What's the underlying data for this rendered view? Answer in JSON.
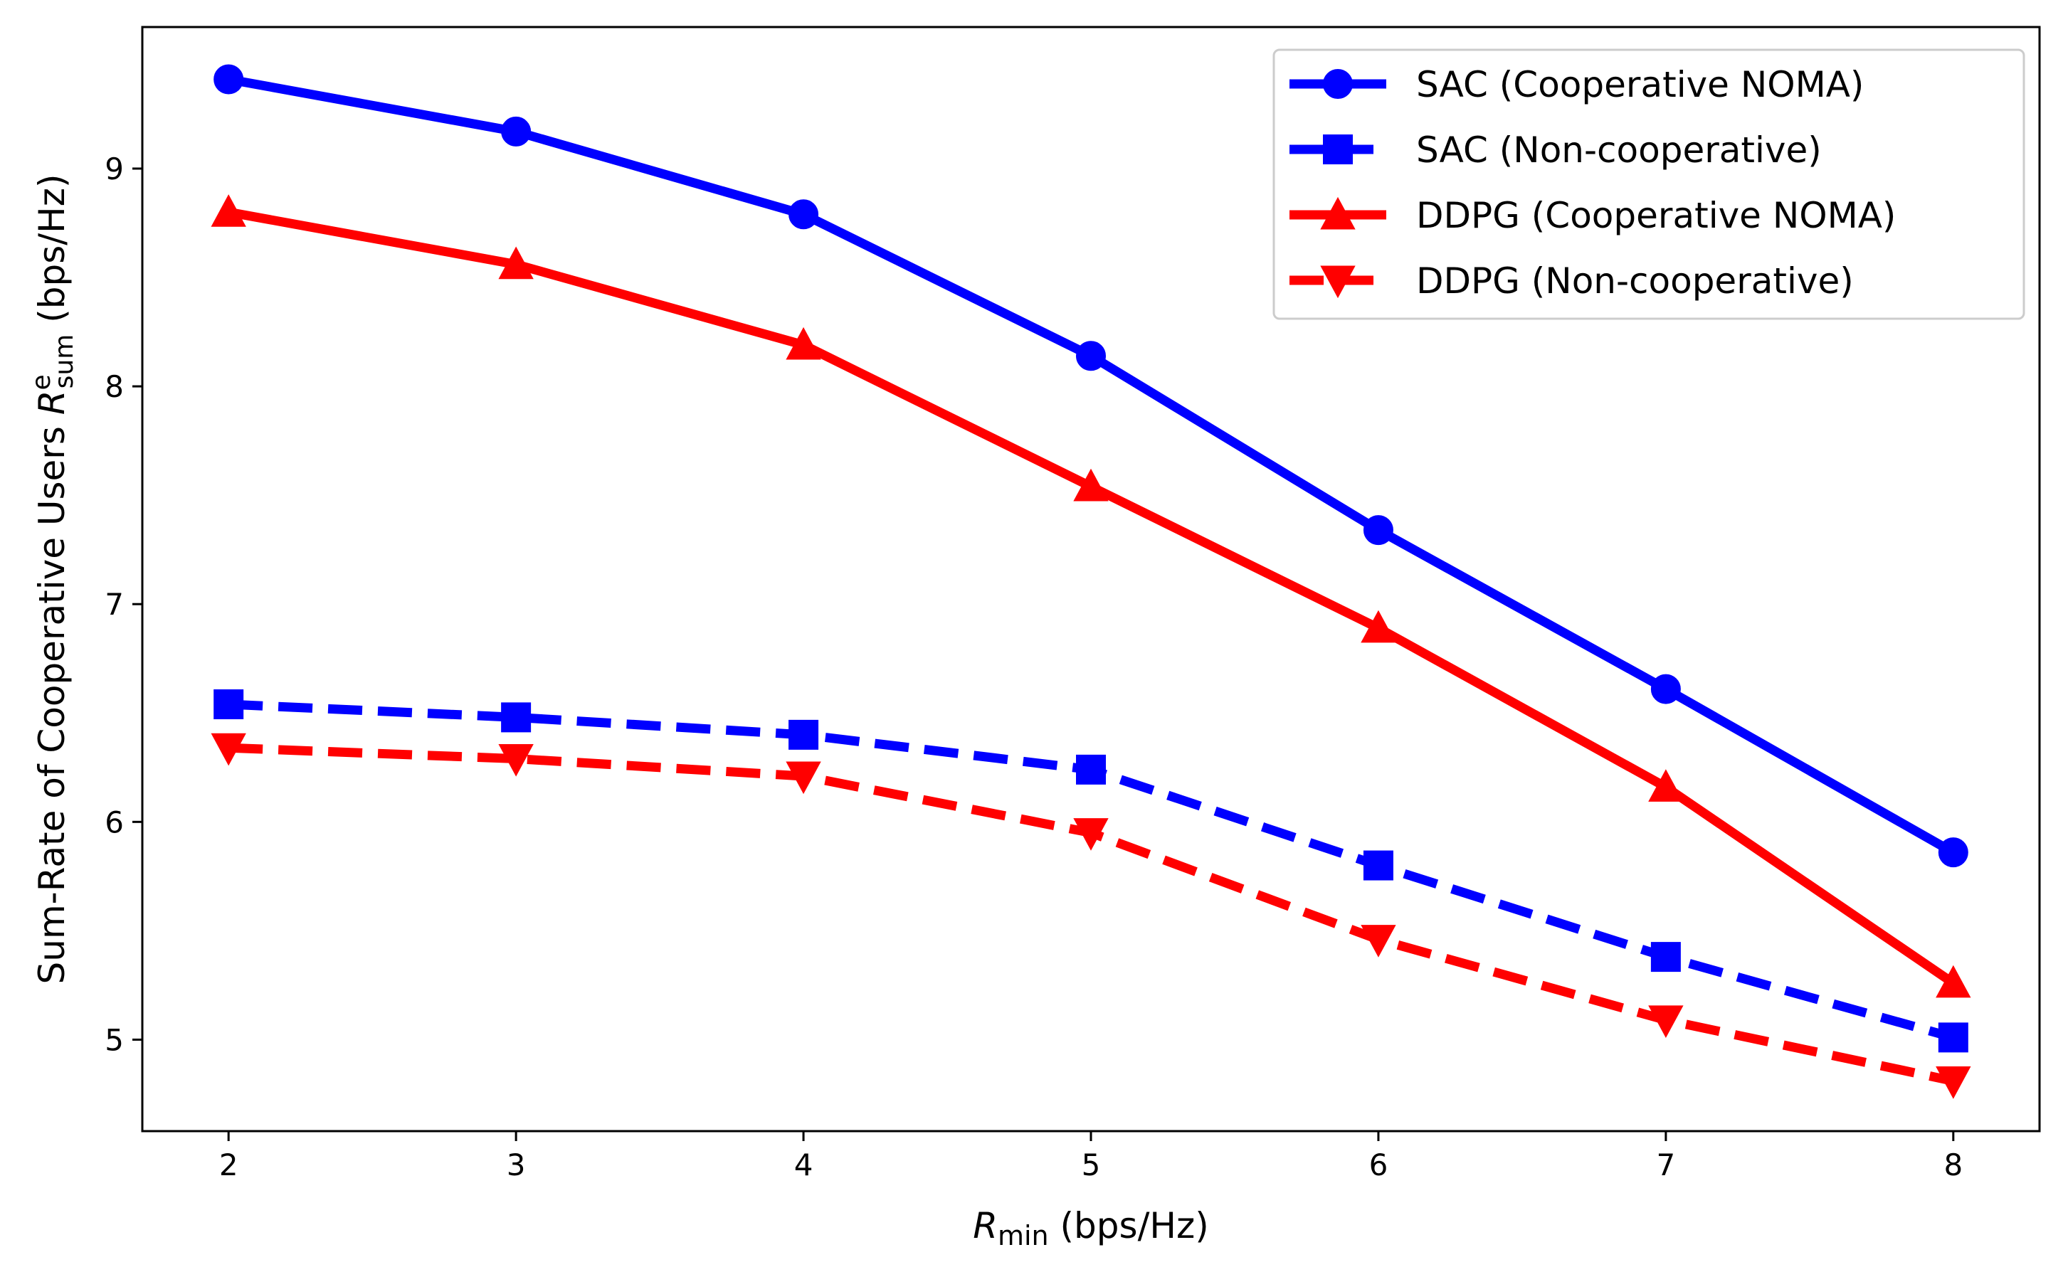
{
  "chart_data": {
    "type": "line",
    "x": [
      2,
      3,
      4,
      5,
      6,
      7,
      8
    ],
    "xlim": [
      1.7,
      8.3
    ],
    "ylim": [
      4.58,
      9.65
    ],
    "xticks": [
      2,
      3,
      4,
      5,
      6,
      7,
      8
    ],
    "yticks": [
      5,
      6,
      7,
      8,
      9
    ],
    "xlabel": {
      "var": "R",
      "sub": "min",
      "unit": " (bps/Hz)"
    },
    "ylabel": {
      "prefix": "Sum-Rate of Cooperative Users ",
      "var": "R",
      "sup": "e",
      "sub": "sum",
      "unit": "  (bps/Hz)"
    },
    "grid": false,
    "legend_position": "top-right",
    "series": [
      {
        "name": "SAC (Cooperative NOMA)",
        "color": "#0000ff",
        "dash": "solid",
        "marker": "circle",
        "values": [
          9.41,
          9.17,
          8.79,
          8.14,
          7.34,
          6.61,
          5.86
        ]
      },
      {
        "name": "SAC (Non-cooperative)",
        "color": "#0000ff",
        "dash": "dashed",
        "marker": "square",
        "values": [
          6.54,
          6.48,
          6.4,
          6.24,
          5.8,
          5.38,
          5.01
        ]
      },
      {
        "name": "DDPG (Cooperative NOMA)",
        "color": "#ff0000",
        "dash": "solid",
        "marker": "triangle-up",
        "values": [
          8.8,
          8.56,
          8.19,
          7.54,
          6.89,
          6.16,
          5.26
        ]
      },
      {
        "name": "DDPG (Non-cooperative)",
        "color": "#ff0000",
        "dash": "dashed",
        "marker": "triangle-down",
        "values": [
          6.34,
          6.29,
          6.21,
          5.95,
          5.46,
          5.09,
          4.81
        ]
      }
    ]
  }
}
